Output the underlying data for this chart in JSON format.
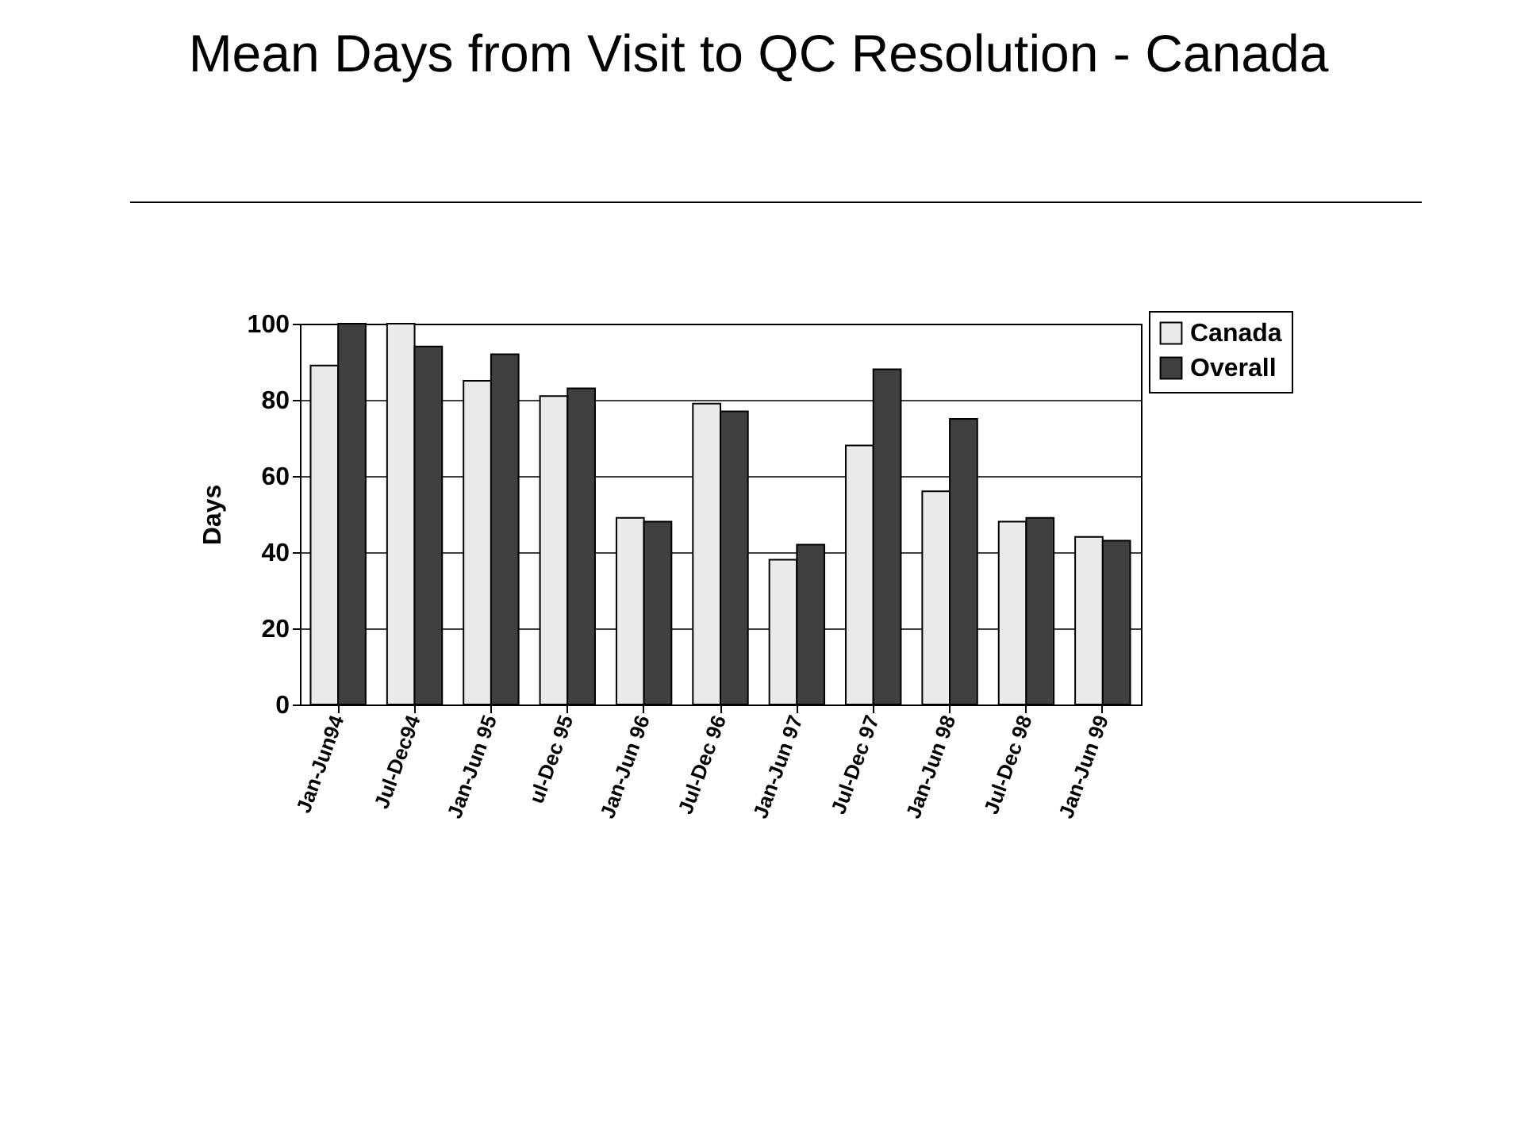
{
  "chart_data": {
    "type": "bar",
    "title": "Mean Days from Visit to QC Resolution - Canada",
    "ylabel": "Days",
    "categories": [
      "Jan-Jun94",
      "Jul-Dec94",
      "Jan-Jun 95",
      "ul-Dec 95",
      "Jan-Jun 96",
      "Jul-Dec 96",
      "Jan-Jun 97",
      "Jul-Dec 97",
      "Jan-Jun 98",
      "Jul-Dec 98",
      "Jan-Jun 99"
    ],
    "series": [
      {
        "name": "Canada",
        "color": "#eaeaea",
        "values": [
          89,
          100,
          85,
          81,
          49,
          79,
          38,
          68,
          56,
          48,
          44
        ]
      },
      {
        "name": "Overall",
        "color": "#404040",
        "values": [
          100,
          94,
          92,
          83,
          48,
          77,
          42,
          88,
          75,
          49,
          43
        ]
      }
    ],
    "ylim": [
      0,
      100
    ],
    "yticks": [
      0,
      20,
      40,
      60,
      80,
      100
    ],
    "grid": "y",
    "legend": "top right"
  }
}
